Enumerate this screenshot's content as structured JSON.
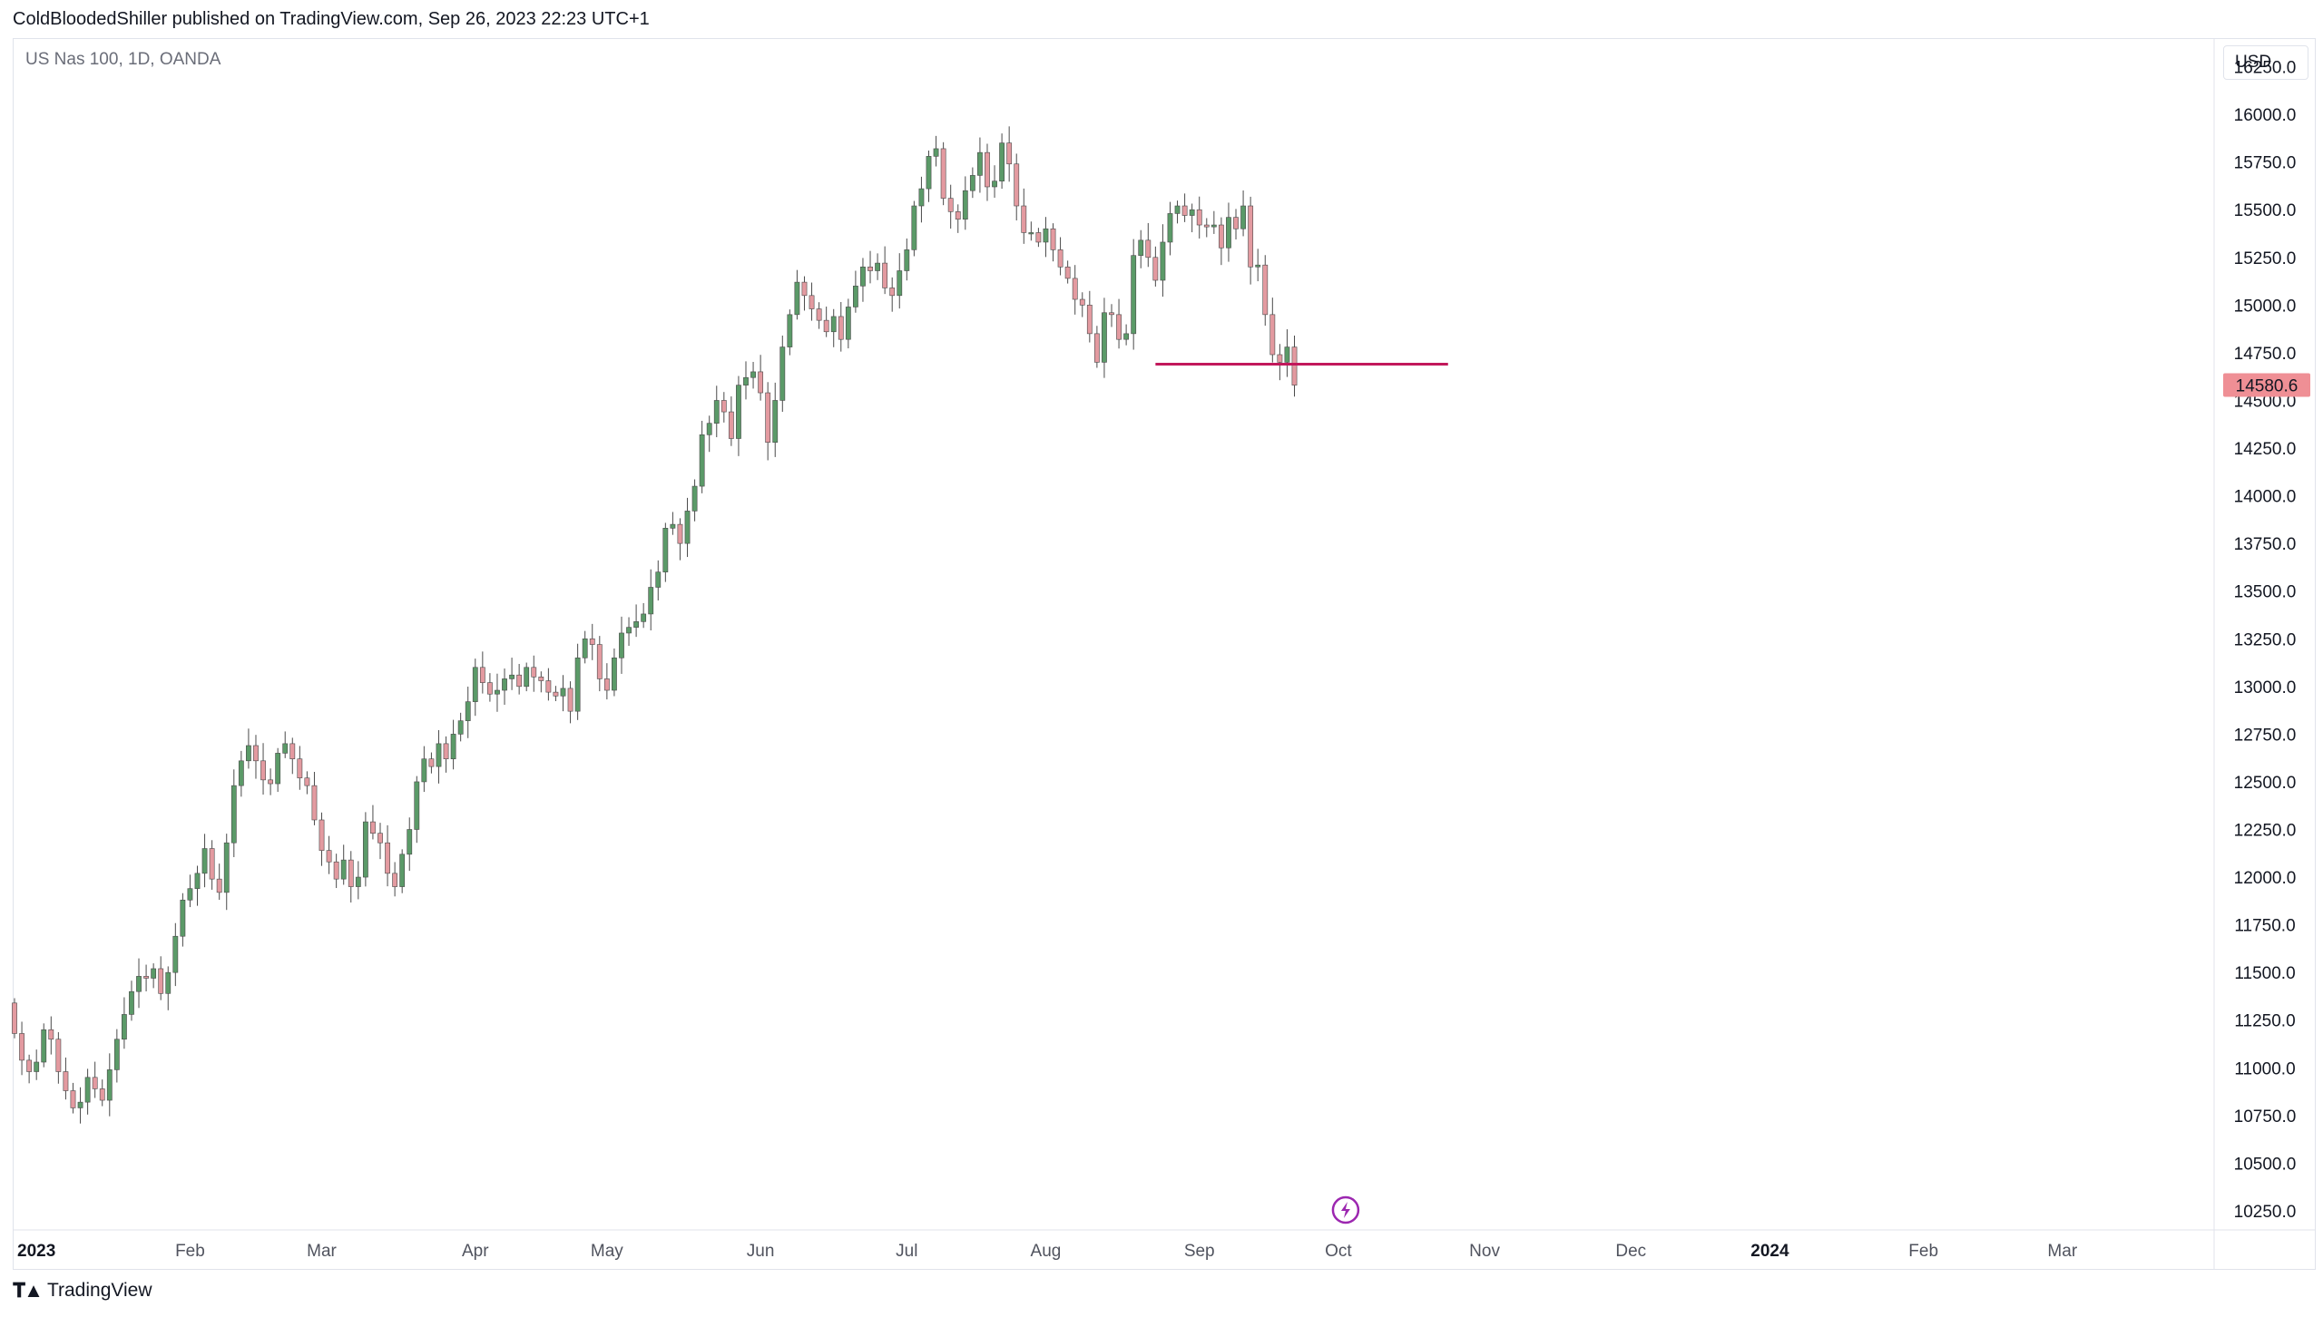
{
  "header": {
    "published": "ColdBloodedShiller published on TradingView.com, Sep 26, 2023 22:23 UTC+1"
  },
  "symbol": "US Nas 100, 1D, OANDA",
  "currency": "USD",
  "footer": {
    "brand": "TradingView",
    "logo_icon": "tradingview-logo-icon"
  },
  "colors": {
    "up": "#5b9a68",
    "down": "#e39aa0",
    "wick": "#4a4a4a",
    "level_line": "#c2185b",
    "price_badge": "#ef8f95",
    "event_icon": "#9c27b0"
  },
  "chart_data": {
    "type": "candlestick",
    "title": "US Nas 100, 1D, OANDA",
    "ylim": [
      10150,
      16400
    ],
    "y_ticks": [
      "16250.0",
      "16000.0",
      "15750.0",
      "15500.0",
      "15250.0",
      "15000.0",
      "14750.0",
      "14500.0",
      "14250.0",
      "14000.0",
      "13750.0",
      "13500.0",
      "13250.0",
      "13000.0",
      "12750.0",
      "12500.0",
      "12250.0",
      "12000.0",
      "11750.0",
      "11500.0",
      "11250.0",
      "11000.0",
      "10750.0",
      "10500.0",
      "10250.0"
    ],
    "x_labels": [
      {
        "label": "2023",
        "bold": true,
        "idx": 3
      },
      {
        "label": "Feb",
        "bold": false,
        "idx": 24
      },
      {
        "label": "Mar",
        "bold": false,
        "idx": 42
      },
      {
        "label": "Apr",
        "bold": false,
        "idx": 63
      },
      {
        "label": "May",
        "bold": false,
        "idx": 81
      },
      {
        "label": "Jun",
        "bold": false,
        "idx": 102
      },
      {
        "label": "Jul",
        "bold": false,
        "idx": 122
      },
      {
        "label": "Aug",
        "bold": false,
        "idx": 141
      },
      {
        "label": "Sep",
        "bold": false,
        "idx": 162
      },
      {
        "label": "Oct",
        "bold": false,
        "idx": 181
      },
      {
        "label": "Nov",
        "bold": false,
        "idx": 201
      },
      {
        "label": "Dec",
        "bold": false,
        "idx": 221
      },
      {
        "label": "2024",
        "bold": true,
        "idx": 240
      },
      {
        "label": "Feb",
        "bold": false,
        "idx": 261
      },
      {
        "label": "Mar",
        "bold": false,
        "idx": 280
      }
    ],
    "last_price": "14580.6",
    "horizontal_line": {
      "price": 14690,
      "from_idx": 156,
      "to_idx": 196
    },
    "event_marker_idx": 182,
    "closes": [
      11180,
      11040,
      10980,
      11030,
      11200,
      11150,
      10980,
      10880,
      10790,
      10820,
      10950,
      10890,
      10830,
      10990,
      11150,
      11280,
      11400,
      11480,
      11470,
      11520,
      11390,
      11500,
      11690,
      11880,
      11940,
      12020,
      12150,
      11990,
      11920,
      12180,
      12480,
      12610,
      12690,
      12610,
      12510,
      12490,
      12650,
      12700,
      12620,
      12520,
      12480,
      12300,
      12140,
      12080,
      11990,
      12090,
      11950,
      12000,
      12290,
      12230,
      12180,
      12020,
      11950,
      12120,
      12250,
      12500,
      12620,
      12580,
      12700,
      12620,
      12750,
      12820,
      12920,
      13100,
      13020,
      12960,
      12980,
      13040,
      13060,
      13000,
      13100,
      13050,
      13030,
      12970,
      12950,
      12990,
      12870,
      13150,
      13250,
      13220,
      13040,
      12980,
      13150,
      13280,
      13310,
      13340,
      13380,
      13520,
      13600,
      13830,
      13850,
      13750,
      13920,
      14050,
      14320,
      14380,
      14500,
      14440,
      14300,
      14580,
      14620,
      14650,
      14540,
      14280,
      14500,
      14780,
      14950,
      15120,
      15050,
      14980,
      14920,
      14860,
      14940,
      14820,
      14990,
      15100,
      15200,
      15180,
      15220,
      15090,
      15050,
      15180,
      15290,
      15520,
      15610,
      15780,
      15820,
      15560,
      15490,
      15450,
      15600,
      15680,
      15800,
      15620,
      15650,
      15850,
      15740,
      15520,
      15380,
      15380,
      15330,
      15400,
      15290,
      15200,
      15140,
      15030,
      15000,
      14850,
      14700,
      14960,
      14950,
      14820,
      14850,
      15260,
      15340,
      15250,
      15130,
      15330,
      15480,
      15520,
      15470,
      15500,
      15420,
      15410,
      15420,
      15300,
      15460,
      15400,
      15520,
      15200,
      15210,
      14950,
      14740,
      14700,
      14780,
      14580
    ]
  }
}
